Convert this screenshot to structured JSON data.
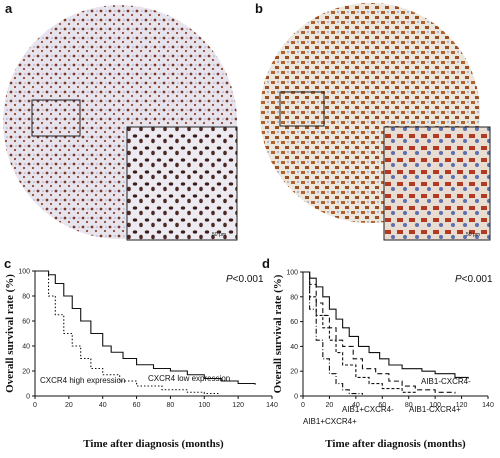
{
  "panels": {
    "a": {
      "label": "a",
      "scale_bar": "50 μm"
    },
    "b": {
      "label": "b",
      "scale_bar": "50 μm"
    }
  },
  "chart_data": [
    {
      "type": "step",
      "panel_label": "c",
      "x_label": "Time after diagnosis (months)",
      "y_label": "Overall survival rate (%)",
      "annotation": {
        "symbol": "P",
        "text": "<0.001"
      },
      "xlim": [
        0,
        140
      ],
      "xticks": [
        0,
        20,
        40,
        60,
        80,
        100,
        120,
        140
      ],
      "ylim": [
        0,
        100
      ],
      "yticks": [
        0,
        20,
        40,
        60,
        80,
        100
      ],
      "series": [
        {
          "name": "CXCR4 low expression",
          "dash": "none",
          "color": "#111111",
          "x": [
            0,
            5,
            8,
            12,
            17,
            22,
            27,
            33,
            40,
            45,
            52,
            60,
            70,
            80,
            90,
            100,
            110,
            120,
            130
          ],
          "values": [
            100,
            100,
            97,
            90,
            80,
            70,
            60,
            50,
            40,
            35,
            30,
            25,
            22,
            20,
            17,
            14,
            12,
            10,
            9
          ]
        },
        {
          "name": "CXCR4 high expression",
          "dash": "1.5 2",
          "color": "#111111",
          "x": [
            0,
            8,
            12,
            17,
            22,
            27,
            33,
            40,
            50,
            60,
            75,
            90,
            100,
            108
          ],
          "values": [
            100,
            80,
            65,
            50,
            40,
            30,
            22,
            17,
            12,
            8,
            5,
            3,
            2,
            1
          ]
        }
      ]
    },
    {
      "type": "step",
      "panel_label": "d",
      "x_label": "Time after diagnosis (months)",
      "y_label": "Overall survival rate (%)",
      "annotation": {
        "symbol": "P",
        "text": "<0.001"
      },
      "xlim": [
        0,
        140
      ],
      "xticks": [
        0,
        20,
        40,
        60,
        80,
        100,
        120,
        140
      ],
      "ylim": [
        0,
        100
      ],
      "yticks": [
        0,
        20,
        40,
        60,
        80,
        100
      ],
      "series": [
        {
          "name": "AIB1-CXCR4-",
          "dash": "none",
          "color": "#111111",
          "x": [
            0,
            5,
            10,
            15,
            20,
            25,
            30,
            35,
            42,
            50,
            58,
            65,
            75,
            90,
            100,
            115,
            125
          ],
          "values": [
            100,
            95,
            88,
            80,
            70,
            62,
            55,
            48,
            40,
            35,
            30,
            25,
            22,
            20,
            18,
            15,
            14
          ]
        },
        {
          "name": "AIB1-CXCR4+",
          "dash": "5 3",
          "color": "#111111",
          "x": [
            0,
            5,
            10,
            15,
            20,
            25,
            30,
            38,
            45,
            55,
            65,
            75,
            85,
            100,
            115
          ],
          "values": [
            100,
            90,
            75,
            65,
            55,
            45,
            40,
            30,
            22,
            18,
            12,
            8,
            5,
            3,
            2
          ]
        },
        {
          "name": "AIB1+CXCR4-",
          "dash": "3 2",
          "color": "#111111",
          "x": [
            0,
            5,
            10,
            15,
            20,
            25,
            30,
            40,
            50,
            60,
            75,
            85
          ],
          "values": [
            100,
            80,
            65,
            55,
            45,
            35,
            25,
            15,
            10,
            6,
            3,
            2
          ]
        },
        {
          "name": "AIB1+CXCR4+",
          "dash": "5 2 1 2",
          "color": "#111111",
          "x": [
            0,
            5,
            10,
            15,
            20,
            25,
            30,
            35,
            45
          ],
          "values": [
            100,
            70,
            45,
            30,
            18,
            10,
            5,
            2,
            1
          ]
        }
      ]
    }
  ]
}
